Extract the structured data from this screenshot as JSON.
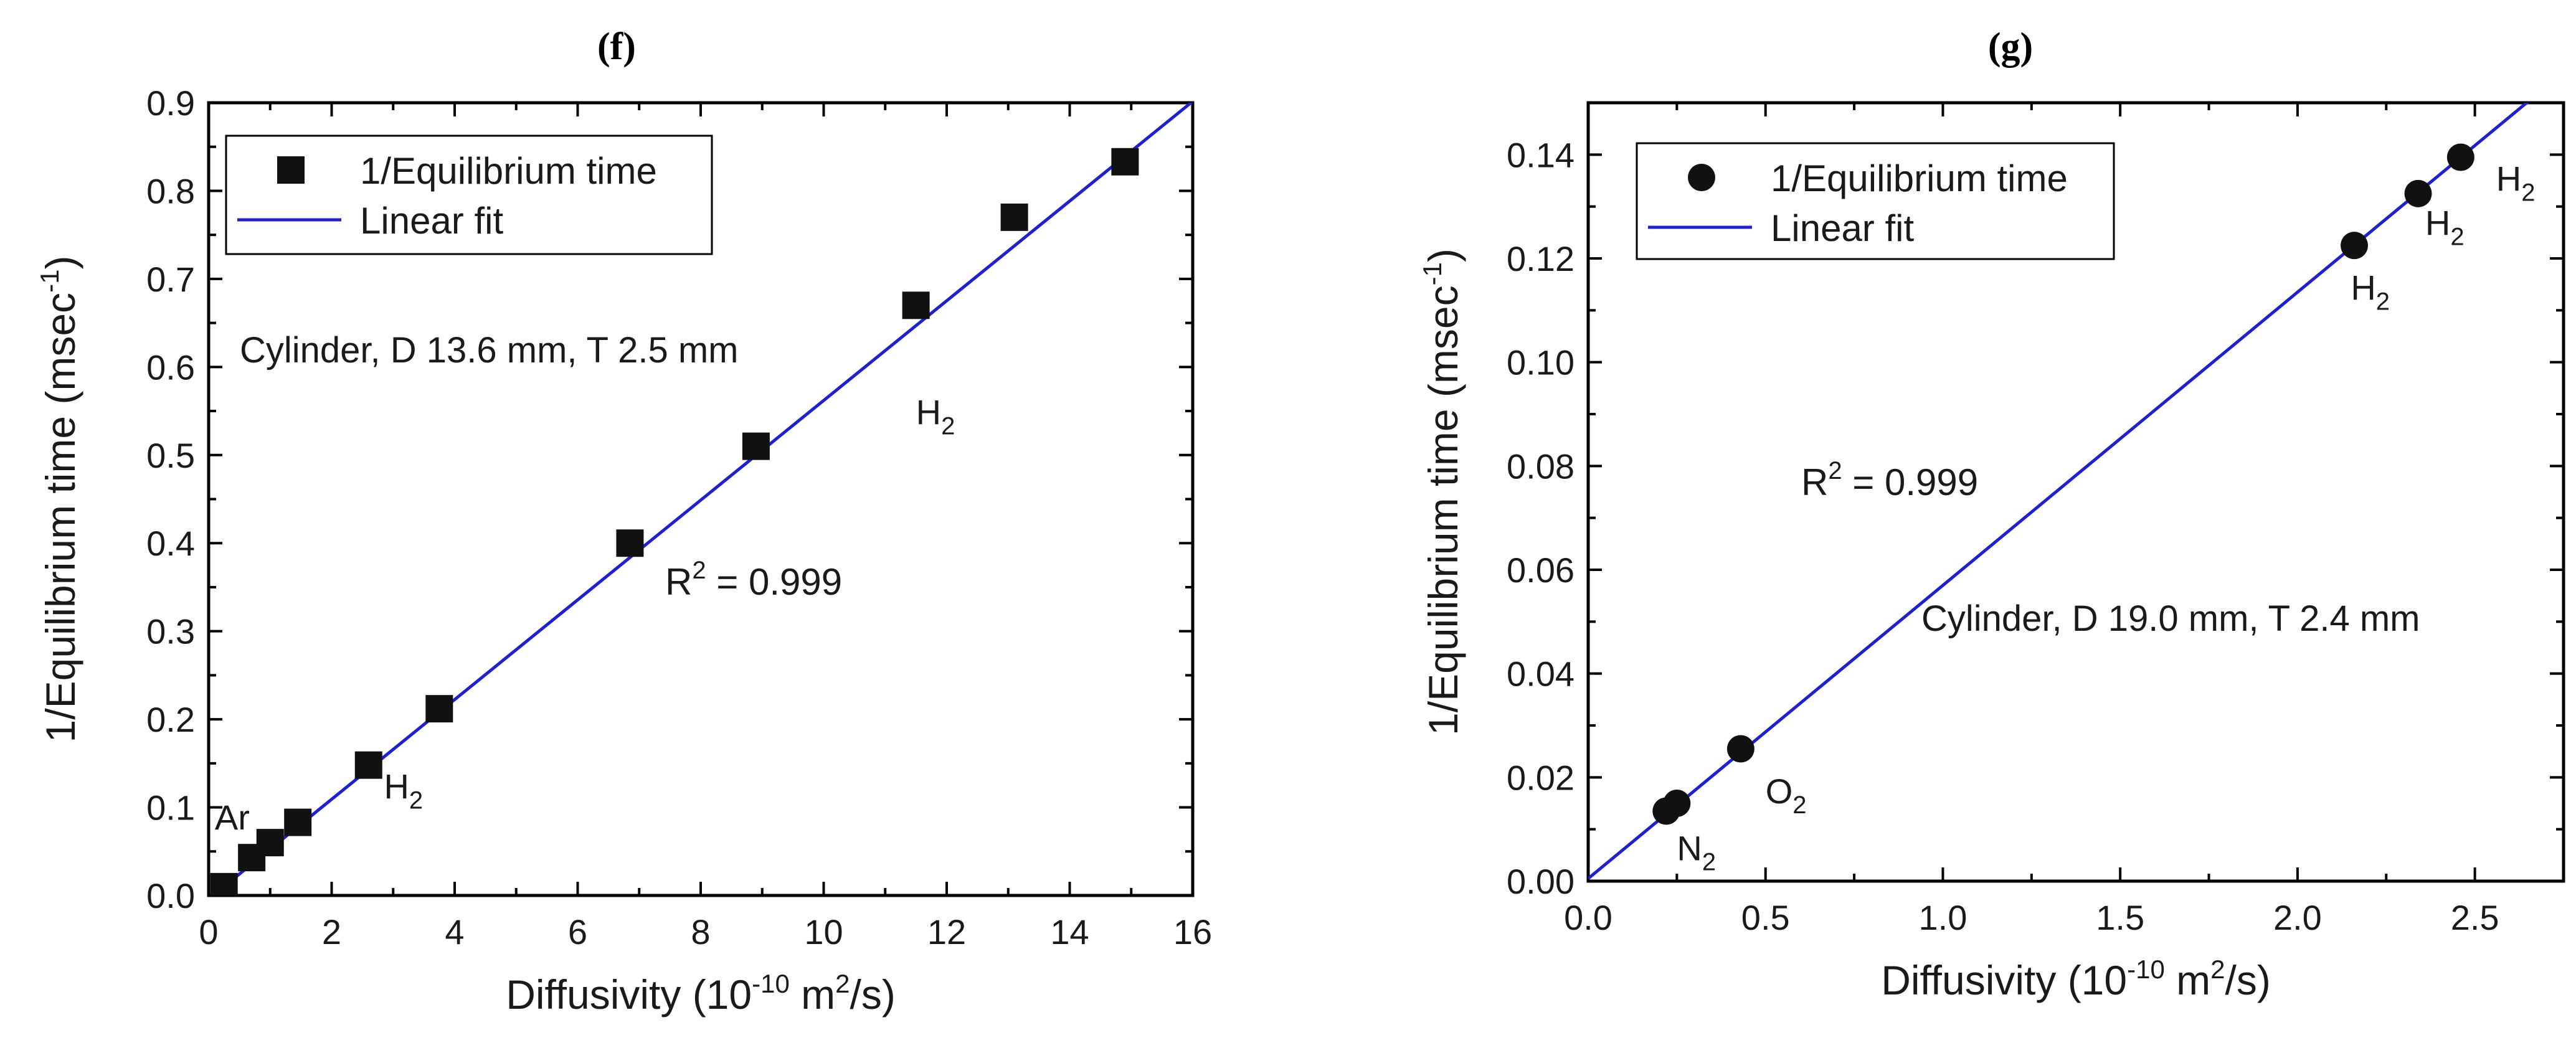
{
  "chart_data": [
    {
      "panel_label": "(f)",
      "type": "scatter",
      "xlabel_main": "Diffusivity (10",
      "xlabel_exp": "-10",
      "xlabel_tail1": " m",
      "xlabel_exp2": "2",
      "xlabel_tail2": "/s)",
      "ylabel_main": "1/Equilibrium time (msec",
      "ylabel_exp": "-1",
      "ylabel_tail": ")",
      "xlim": [
        0,
        16
      ],
      "ylim": [
        0,
        0.9
      ],
      "xticks": [
        "0",
        "2",
        "4",
        "6",
        "8",
        "10",
        "12",
        "14",
        "16"
      ],
      "yticks": [
        "0.0",
        "0.1",
        "0.2",
        "0.3",
        "0.4",
        "0.5",
        "0.6",
        "0.7",
        "0.8",
        "0.9"
      ],
      "marker": "square",
      "points": [
        {
          "x": 0.25,
          "y": 0.01
        },
        {
          "x": 0.7,
          "y": 0.043
        },
        {
          "x": 1.0,
          "y": 0.06
        },
        {
          "x": 1.45,
          "y": 0.083
        },
        {
          "x": 2.6,
          "y": 0.148
        },
        {
          "x": 3.75,
          "y": 0.212
        },
        {
          "x": 6.85,
          "y": 0.4
        },
        {
          "x": 8.9,
          "y": 0.51
        },
        {
          "x": 11.5,
          "y": 0.67
        },
        {
          "x": 13.1,
          "y": 0.77
        },
        {
          "x": 14.9,
          "y": 0.833
        }
      ],
      "fit": {
        "slope": 0.0566,
        "intercept": -0.004,
        "x_range": [
          0,
          16
        ]
      },
      "legend": {
        "point_label": "1/Equilibrium time",
        "line_label": "Linear fit"
      },
      "annotations": [
        {
          "text": "Cylinder, D 13.6 mm, T 2.5 mm",
          "kind": "note"
        },
        {
          "text": "R",
          "sup": "2",
          "tail": " = 0.999",
          "kind": "r2"
        },
        {
          "text": "H",
          "sub": "2",
          "kind": "gas",
          "x": 11.5,
          "y": 0.535
        },
        {
          "text": "H",
          "sub": "2",
          "kind": "gas",
          "x": 2.85,
          "y": 0.11
        },
        {
          "text": "Ar",
          "kind": "gas",
          "x": 0.1,
          "y": 0.075
        }
      ]
    },
    {
      "panel_label": "(g)",
      "type": "scatter",
      "xlabel_main": "Diffusivity (10",
      "xlabel_exp": "-10",
      "xlabel_tail1": " m",
      "xlabel_exp2": "2",
      "xlabel_tail2": "/s)",
      "ylabel_main": "1/Equilibrium time (msec",
      "ylabel_exp": "-1",
      "ylabel_tail": ")",
      "xlim": [
        0,
        2.75
      ],
      "ylim": [
        0,
        0.15
      ],
      "xticks": [
        "0.0",
        "0.5",
        "1.0",
        "1.5",
        "2.0",
        "2.5"
      ],
      "yticks": [
        "0.00",
        "0.02",
        "0.04",
        "0.06",
        "0.08",
        "0.10",
        "0.12",
        "0.14"
      ],
      "marker": "circle",
      "points": [
        {
          "x": 0.22,
          "y": 0.0135
        },
        {
          "x": 0.25,
          "y": 0.015
        },
        {
          "x": 0.43,
          "y": 0.0255
        },
        {
          "x": 2.16,
          "y": 0.1225
        },
        {
          "x": 2.34,
          "y": 0.1325
        },
        {
          "x": 2.46,
          "y": 0.1395
        }
      ],
      "fit": {
        "slope": 0.0565,
        "intercept": 0.0005,
        "x_range": [
          0,
          2.75
        ]
      },
      "legend": {
        "point_label": "1/Equilibrium time",
        "line_label": "Linear fit"
      },
      "annotations": [
        {
          "text": "R",
          "sup": "2",
          "tail": " = 0.999",
          "kind": "r2"
        },
        {
          "text": "Cylinder, D 19.0 mm, T 2.4 mm",
          "kind": "note"
        },
        {
          "text": "H",
          "sub": "2",
          "kind": "gas",
          "x": 2.56,
          "y": 0.133
        },
        {
          "text": "H",
          "sub": "2",
          "kind": "gas",
          "x": 2.36,
          "y": 0.1245
        },
        {
          "text": "H",
          "sub": "2",
          "kind": "gas",
          "x": 2.15,
          "y": 0.112
        },
        {
          "text": "O",
          "sub": "2",
          "kind": "gas",
          "x": 0.5,
          "y": 0.015
        },
        {
          "text": "N",
          "sub": "2",
          "kind": "gas",
          "x": 0.25,
          "y": 0.004
        }
      ]
    }
  ]
}
